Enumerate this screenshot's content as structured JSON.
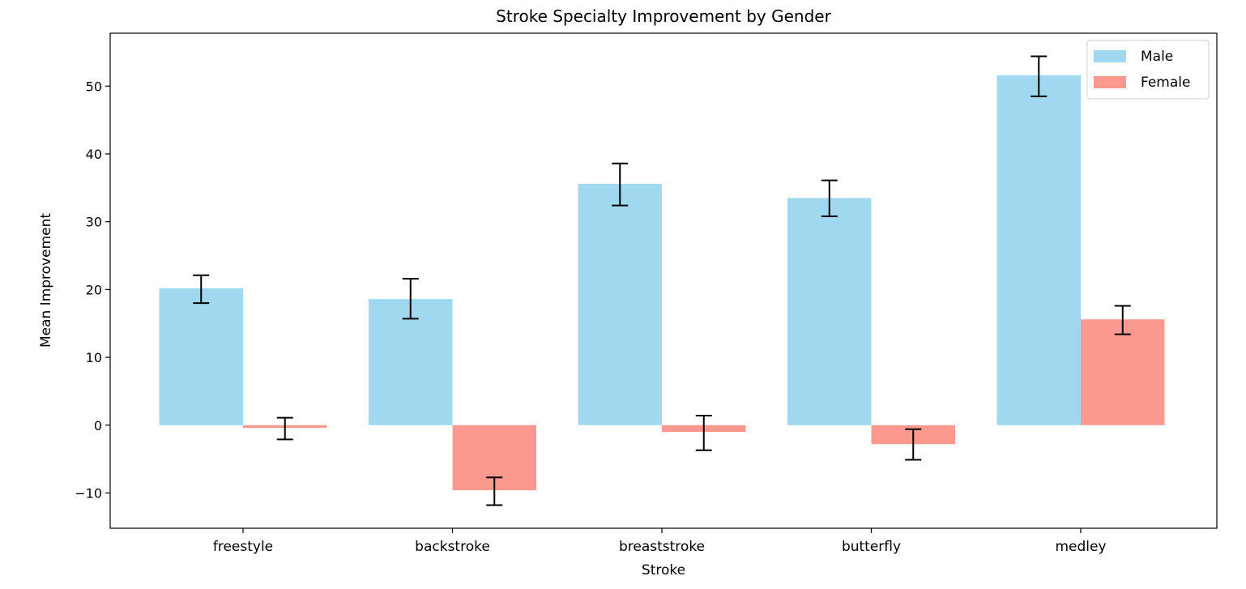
{
  "chart_data": {
    "type": "bar",
    "title": "Stroke Specialty Improvement by Gender",
    "xlabel": "Stroke",
    "ylabel": "Mean Improvement",
    "categories": [
      "freestyle",
      "backstroke",
      "breaststroke",
      "butterfly",
      "medley"
    ],
    "series": [
      {
        "name": "Male",
        "color": "#87ceeb",
        "values": [
          20.2,
          18.6,
          35.6,
          33.5,
          51.6
        ],
        "err_low": [
          18.0,
          15.7,
          32.4,
          30.8,
          48.5
        ],
        "err_high": [
          22.1,
          21.6,
          38.6,
          36.1,
          54.4
        ]
      },
      {
        "name": "Female",
        "color": "#fa8072",
        "values": [
          -0.4,
          -9.6,
          -1.0,
          -2.8,
          15.6
        ],
        "err_low": [
          -2.1,
          -11.8,
          -3.7,
          -5.1,
          13.4
        ],
        "err_high": [
          1.1,
          -7.7,
          1.4,
          -0.6,
          17.6
        ]
      }
    ],
    "ylim": [
      -15.2,
      57.8
    ],
    "yticks": [
      -10,
      0,
      10,
      20,
      30,
      40,
      50
    ],
    "ytick_labels": [
      "−10",
      "0",
      "10",
      "20",
      "30",
      "40",
      "50"
    ],
    "legend_position": "top-right",
    "grid": false
  }
}
